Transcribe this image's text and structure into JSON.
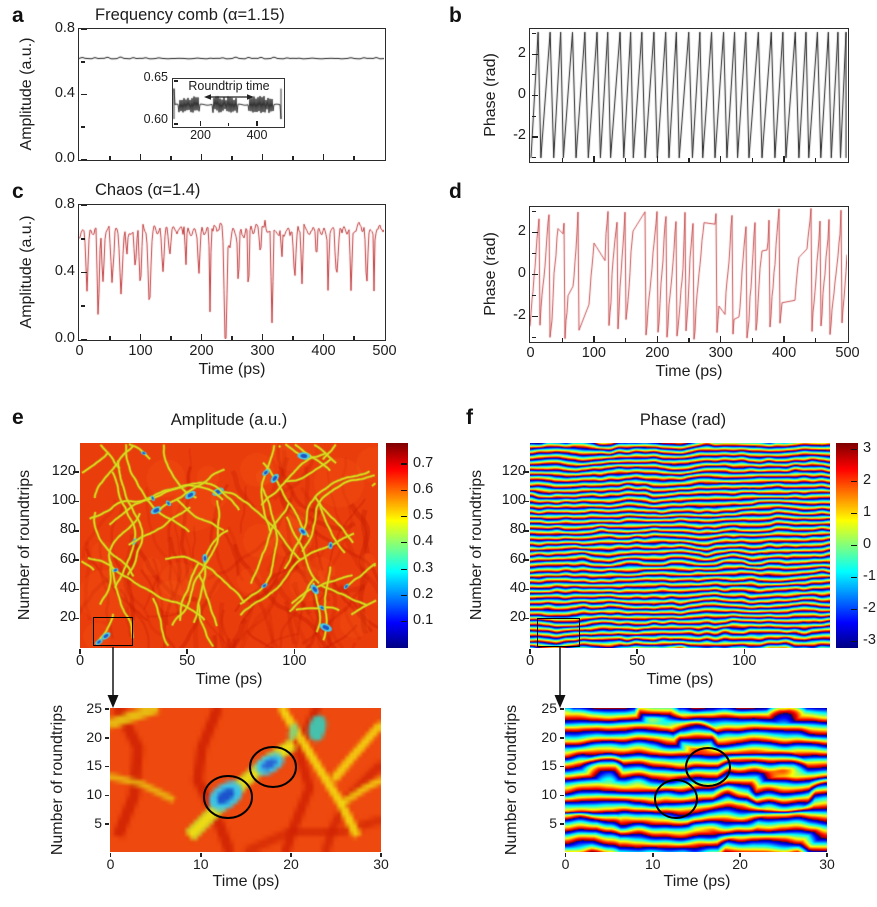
{
  "figure": {
    "panel_letters": {
      "a": "a",
      "b": "b",
      "c": "c",
      "d": "d",
      "e": "e",
      "f": "f"
    },
    "colors": {
      "black_trace": "#1a1a1a",
      "red_trace": "#c23b3d",
      "axis": "#222222",
      "background": "#ffffff"
    }
  },
  "chart_data": [
    {
      "panel": "a",
      "type": "line",
      "title": "Frequency comb (α=1.15)",
      "ylabel": "Amplitude (a.u.)",
      "xlabel": "",
      "xlim": [
        0,
        500
      ],
      "ylim": [
        0,
        0.8
      ],
      "xticks": [
        0,
        100,
        200,
        300,
        400,
        500
      ],
      "xtick_labels_shown": false,
      "yticks": [
        0.8,
        0.4,
        0.0
      ],
      "ytick_labels": [
        "0.8",
        "0.4",
        "0.0"
      ],
      "line_color": "#1a1a1a",
      "series_summary": {
        "baseline_amplitude": 0.62,
        "ripple_amplitude": 0.01,
        "ripple_period_ps": 17,
        "description": "Nearly constant amplitude ≈0.62 a.u. with small periodic comb ripples over 0–500 ps"
      }
    },
    {
      "panel": "a-inset",
      "type": "line",
      "annotation": "Roundtrip time",
      "xlim": [
        100,
        500
      ],
      "ylim": [
        0.6,
        0.65
      ],
      "xticks": [
        200,
        400
      ],
      "xtick_labels": [
        "200",
        "400"
      ],
      "yticks": [
        0.65,
        0.6
      ],
      "ytick_labels": [
        "0.65",
        "0.60"
      ],
      "line_color": "#1a1a1a",
      "series_summary": {
        "baseline": 0.622,
        "burst_spike_height": 0.007,
        "description": "Periodic bursts of narrow spikes around 0.622 a.u.; burst spacing equals one roundtrip time"
      }
    },
    {
      "panel": "b",
      "type": "line",
      "ylabel": "Phase (rad)",
      "xlabel": "",
      "xlim": [
        0,
        500
      ],
      "ylim": [
        -3.2,
        3.2
      ],
      "xticks": [
        0,
        100,
        200,
        300,
        400,
        500
      ],
      "xtick_labels_shown": false,
      "yticks": [
        2,
        0,
        -2
      ],
      "ytick_labels": [
        "2",
        "0",
        "-2"
      ],
      "line_color": "#1a1a1a",
      "series_summary": {
        "waveform": "sawtooth",
        "phase_range": [
          -3.14,
          3.14
        ],
        "approx_ramps": 28,
        "description": "Linear phase ramps from -π to π repeating ≈28 times across 500 ps (frequency comb regime)"
      }
    },
    {
      "panel": "c",
      "type": "line",
      "title": "Chaos (α=1.4)",
      "ylabel": "Amplitude (a.u.)",
      "xlabel": "Time (ps)",
      "xlim": [
        0,
        500
      ],
      "ylim": [
        0,
        0.8
      ],
      "xticks": [
        0,
        100,
        200,
        300,
        400,
        500
      ],
      "xtick_labels": [
        "0",
        "100",
        "200",
        "300",
        "400",
        "500"
      ],
      "yticks": [
        0.8,
        0.4,
        0.0
      ],
      "ytick_labels": [
        "0.8",
        "0.4",
        "0.0"
      ],
      "line_color": "#c23b3d",
      "series_summary": {
        "baseline_amplitude": 0.65,
        "dip_depth_range": [
          0.1,
          0.65
        ],
        "deepest_dip_ps": 240,
        "description": "Chaotic amplitude fluctuating around ≈0.65 a.u. with irregular sharp dropouts; deepest dip reaches ≈0 near 240 ps"
      }
    },
    {
      "panel": "d",
      "type": "line",
      "ylabel": "Phase (rad)",
      "xlabel": "Time (ps)",
      "xlim": [
        0,
        500
      ],
      "ylim": [
        -3.2,
        3.2
      ],
      "xticks": [
        0,
        100,
        200,
        300,
        400,
        500
      ],
      "xtick_labels": [
        "0",
        "100",
        "200",
        "300",
        "400",
        "500"
      ],
      "yticks": [
        2,
        0,
        -2
      ],
      "ytick_labels": [
        "2",
        "0",
        "-2"
      ],
      "line_color": "#c23b3d",
      "series_summary": {
        "waveform": "chaotic phase ramps",
        "phase_range": [
          -3.14,
          3.14
        ],
        "description": "Irregular fast phase ramps wrapping between -π and π with intermittent slow plateaus (chaotic regime)"
      }
    },
    {
      "panel": "e",
      "type": "heatmap",
      "title": "Amplitude (a.u.)",
      "xlabel": "Time (ps)",
      "ylabel": "Number of roundtrips",
      "xlim": [
        0,
        140
      ],
      "ylim": [
        0,
        140
      ],
      "xticks": [
        0,
        50,
        100
      ],
      "xtick_labels": [
        "0",
        "50",
        "100"
      ],
      "yticks": [
        20,
        40,
        60,
        80,
        100,
        120
      ],
      "ytick_labels": [
        "20",
        "40",
        "60",
        "80",
        "100",
        "120"
      ],
      "colormap": "jet",
      "clim": [
        0,
        0.78
      ],
      "colorbar_ticks": [
        0.7,
        0.6,
        0.5,
        0.4,
        0.3,
        0.2,
        0.1
      ],
      "colorbar_tick_labels": [
        "0.7",
        "0.6",
        "0.5",
        "0.4",
        "0.3",
        "0.2",
        "0.1"
      ],
      "annotation_box": {
        "time_ps": [
          5,
          25
        ],
        "roundtrips": [
          2,
          22
        ]
      },
      "description": "Spatiotemporal amplitude map: mostly 0.6–0.7 (red/orange) with branching filaments near 0.45–0.55 (yellow-green) and localized dips to 0.1–0.3 (cyan/blue); black box marks zoom region"
    },
    {
      "panel": "e-zoom",
      "type": "heatmap",
      "xlabel": "Time (ps)",
      "ylabel": "Number of roundtrips",
      "xlim": [
        0,
        30
      ],
      "ylim": [
        0,
        26
      ],
      "xticks": [
        0,
        10,
        20,
        30
      ],
      "xtick_labels": [
        "0",
        "10",
        "20",
        "30"
      ],
      "yticks": [
        25,
        20,
        15,
        10,
        5
      ],
      "ytick_labels": [
        "25",
        "20",
        "15",
        "10",
        "5"
      ],
      "colormap": "jet",
      "clim": [
        0,
        0.78
      ],
      "circled_features": [
        {
          "time_ps": 13,
          "roundtrip": 10
        },
        {
          "time_ps": 18,
          "roundtrip": 15.5
        }
      ],
      "description": "Zoom of boxed region in panel e; two black circles mark localized amplitude dips (blue spots on yellow-green filament)"
    },
    {
      "panel": "f",
      "type": "heatmap",
      "title": "Phase (rad)",
      "xlabel": "Time (ps)",
      "ylabel": "Number of roundtrips",
      "xlim": [
        0,
        140
      ],
      "ylim": [
        0,
        140
      ],
      "xticks": [
        0,
        50,
        100
      ],
      "xtick_labels": [
        "0",
        "50",
        "100"
      ],
      "yticks": [
        20,
        40,
        60,
        80,
        100,
        120
      ],
      "ytick_labels": [
        "20",
        "40",
        "60",
        "80",
        "100",
        "120"
      ],
      "colormap": "jet",
      "clim": [
        -3.2,
        3.2
      ],
      "colorbar_ticks": [
        3,
        2,
        1,
        0,
        -1,
        -2,
        -3
      ],
      "colorbar_tick_labels": [
        "3",
        "2",
        "1",
        "0",
        "-1",
        "-2",
        "-3"
      ],
      "annotation_box": {
        "time_ps": [
          4,
          24
        ],
        "roundtrips": [
          2,
          21
        ]
      },
      "description": "Spatiotemporal phase map: fine quasi-horizontal stripes cycling through -π..π with dislocation defects; black box marks zoom region"
    },
    {
      "panel": "f-zoom",
      "type": "heatmap",
      "xlabel": "Time (ps)",
      "ylabel": "Number of roundtrips",
      "xlim": [
        0,
        30
      ],
      "ylim": [
        0,
        26
      ],
      "xticks": [
        0,
        10,
        20,
        30
      ],
      "xtick_labels": [
        "0",
        "10",
        "20",
        "30"
      ],
      "yticks": [
        25,
        20,
        15,
        10,
        5
      ],
      "ytick_labels": [
        "25",
        "20",
        "15",
        "10",
        "5"
      ],
      "colormap": "jet",
      "clim": [
        -3.2,
        3.2
      ],
      "circled_features": [
        {
          "time_ps": 12.5,
          "roundtrip": 9.5
        },
        {
          "time_ps": 16.5,
          "roundtrip": 15
        }
      ],
      "description": "Zoom of boxed region in panel f; two black circles mark phase dislocations in the stripe pattern"
    }
  ]
}
